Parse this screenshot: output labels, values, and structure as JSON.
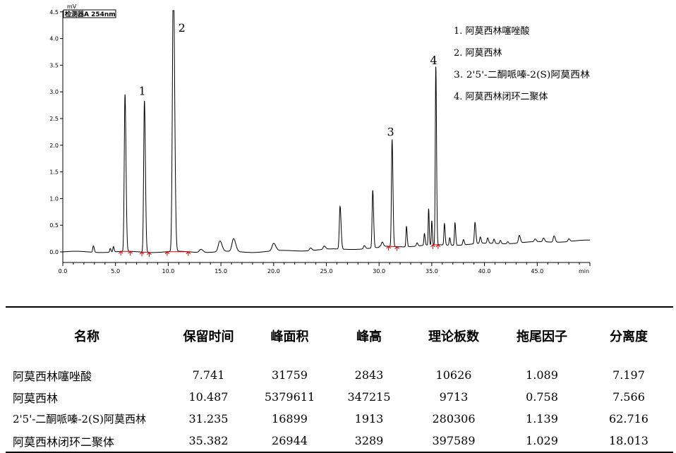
{
  "chart_data": {
    "type": "line",
    "detector_label": "检测器A 254nm",
    "y_unit": "mV",
    "x_unit": "min",
    "xlim": [
      0,
      50
    ],
    "ylim": [
      -0.2,
      4.5
    ],
    "x_ticks": [
      "0.0",
      "5.0",
      "10.0",
      "15.0",
      "20.0",
      "25.0",
      "30.0",
      "35.0",
      "40.0",
      "45.0"
    ],
    "y_ticks": [
      "0.0",
      "0.5",
      "1.0",
      "1.5",
      "2.0",
      "2.5",
      "3.0",
      "3.5",
      "4.0",
      "4.5"
    ],
    "peak_labels": [
      {
        "label": "1",
        "x": 7.741,
        "y": 2.84
      },
      {
        "label": "2",
        "x": 10.487,
        "y": 4.5
      },
      {
        "label": "3",
        "x": 31.235,
        "y": 2.07
      },
      {
        "label": "4",
        "x": 35.382,
        "y": 3.44
      }
    ],
    "legend": [
      "1.  阿莫西林噻唑酸",
      "2.  阿莫西林",
      "3.  2'5'-二酮哌嗪-2(S)阿莫西林",
      "4.   阿莫西林闭环二聚体"
    ],
    "peaks": [
      {
        "x": 2.9,
        "h": 0.12,
        "w": 0.06
      },
      {
        "x": 4.5,
        "h": 0.07,
        "w": 0.05
      },
      {
        "x": 4.8,
        "h": 0.1,
        "w": 0.05
      },
      {
        "x": 5.9,
        "h": 2.94,
        "w": 0.07
      },
      {
        "x": 7.741,
        "h": 2.84,
        "w": 0.07
      },
      {
        "x": 10.487,
        "h": 5.2,
        "w": 0.09
      },
      {
        "x": 13.1,
        "h": 0.06,
        "w": 0.15
      },
      {
        "x": 14.9,
        "h": 0.2,
        "w": 0.15
      },
      {
        "x": 16.2,
        "h": 0.24,
        "w": 0.15
      },
      {
        "x": 20.0,
        "h": 0.14,
        "w": 0.15
      },
      {
        "x": 23.5,
        "h": 0.05,
        "w": 0.1
      },
      {
        "x": 24.8,
        "h": 0.06,
        "w": 0.1
      },
      {
        "x": 26.3,
        "h": 0.8,
        "w": 0.07
      },
      {
        "x": 28.6,
        "h": 0.06,
        "w": 0.08
      },
      {
        "x": 29.4,
        "h": 1.08,
        "w": 0.06
      },
      {
        "x": 30.3,
        "h": 0.08,
        "w": 0.08
      },
      {
        "x": 31.235,
        "h": 2.0,
        "w": 0.06
      },
      {
        "x": 32.6,
        "h": 0.38,
        "w": 0.05
      },
      {
        "x": 33.6,
        "h": 0.06,
        "w": 0.06
      },
      {
        "x": 34.3,
        "h": 0.22,
        "w": 0.05
      },
      {
        "x": 34.7,
        "h": 0.68,
        "w": 0.04
      },
      {
        "x": 35.0,
        "h": 0.45,
        "w": 0.04
      },
      {
        "x": 35.382,
        "h": 3.34,
        "w": 0.05
      },
      {
        "x": 36.2,
        "h": 0.4,
        "w": 0.05
      },
      {
        "x": 36.7,
        "h": 0.14,
        "w": 0.05
      },
      {
        "x": 37.2,
        "h": 0.42,
        "w": 0.05
      },
      {
        "x": 38.0,
        "h": 0.1,
        "w": 0.06
      },
      {
        "x": 39.1,
        "h": 0.4,
        "w": 0.06
      },
      {
        "x": 39.6,
        "h": 0.12,
        "w": 0.06
      },
      {
        "x": 40.3,
        "h": 0.1,
        "w": 0.06
      },
      {
        "x": 40.9,
        "h": 0.08,
        "w": 0.06
      },
      {
        "x": 41.5,
        "h": 0.06,
        "w": 0.06
      },
      {
        "x": 42.2,
        "h": 0.04,
        "w": 0.06
      },
      {
        "x": 43.3,
        "h": 0.14,
        "w": 0.08
      },
      {
        "x": 44.8,
        "h": 0.05,
        "w": 0.08
      },
      {
        "x": 45.6,
        "h": 0.07,
        "w": 0.08
      },
      {
        "x": 46.6,
        "h": 0.12,
        "w": 0.08
      },
      {
        "x": 48.0,
        "h": 0.05,
        "w": 0.08
      }
    ],
    "baseline_marks": [
      [
        5.5,
        6.4
      ],
      [
        7.5,
        8.2
      ],
      [
        9.9,
        11.9
      ],
      [
        30.9,
        31.7
      ],
      [
        35.1,
        35.6
      ]
    ]
  },
  "table": {
    "headers": [
      "名称",
      "保留时间",
      "峰面积",
      "峰高",
      "理论板数",
      "拖尾因子",
      "分离度"
    ],
    "rows": [
      [
        "阿莫西林噻唑酸",
        "7.741",
        "31759",
        "2843",
        "10626",
        "1.089",
        "7.197"
      ],
      [
        "阿莫西林",
        "10.487",
        "5379611",
        "347215",
        "9713",
        "0.758",
        "7.566"
      ],
      [
        "2'5'-二酮哌嗪-2(S)阿莫西林",
        "31.235",
        "16899",
        "1913",
        "280306",
        "1.139",
        "62.716"
      ],
      [
        "阿莫西林闭环二聚体",
        "35.382",
        "26944",
        "3289",
        "397589",
        "1.029",
        "18.013"
      ]
    ]
  }
}
